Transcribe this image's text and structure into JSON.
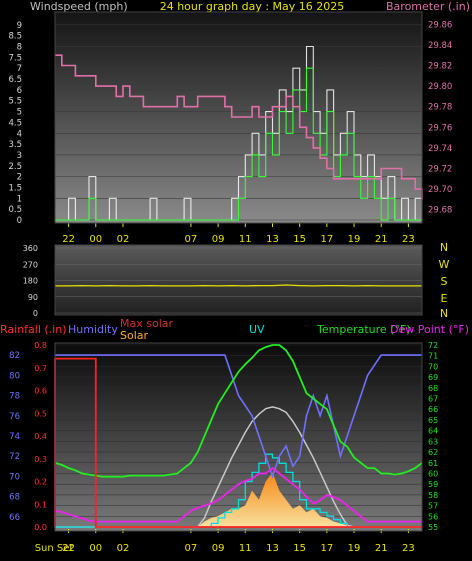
{
  "header": {
    "left_title": "Windspeed (mph)",
    "center_title": "24 hour graph day : May 16 2025",
    "right_title": "Barometer (.in)"
  },
  "time_axis_labels": [
    "22",
    "00",
    "02",
    "07",
    "09",
    "11",
    "13",
    "15",
    "17",
    "19",
    "21",
    "23"
  ],
  "bottom_time_axis_labels": [
    "Sun Set",
    "22",
    "00",
    "02",
    "07",
    "09",
    "11",
    "13",
    "15",
    "17",
    "19",
    "21",
    "23"
  ],
  "colors": {
    "wind_gust": "#ffffff",
    "wind_avg": "#33ff33",
    "barometer": "#e070a8",
    "direction": "#e8e000",
    "rainfall": "#ff2020",
    "humidity": "#7070ff",
    "max_solar": "#c8c8c8",
    "solar": "#ffb040",
    "uv": "#00e0e0",
    "temperature": "#22ee22",
    "dewpoint": "#ee22ee",
    "label_green": "#22dd22",
    "label_red": "#ff3030"
  },
  "direction_panel": {
    "tick_labels": [
      "360",
      "270",
      "180",
      "90",
      "0"
    ],
    "compass_labels": [
      "N",
      "W",
      "S",
      "E",
      "N"
    ]
  },
  "legend": {
    "rainfall": "Rainfall (.in)",
    "humidity": "Humidity",
    "max_solar": "Max solar",
    "solar": "Solar",
    "uv": "UV",
    "temperature": "Temperature (°F)",
    "dewpoint": "Dew Point (°F)"
  },
  "chart_data": [
    {
      "type": "line",
      "x": [
        21,
        21.5,
        22,
        22.5,
        23,
        23.5,
        0,
        0.5,
        1,
        1.5,
        2,
        2.5,
        3,
        3.5,
        4,
        4.5,
        5,
        5.5,
        6,
        6.5,
        7,
        7.5,
        8,
        8.5,
        9,
        9.5,
        10,
        10.5,
        11,
        11.5,
        12,
        12.5,
        13,
        13.5,
        14,
        14.5,
        15,
        15.5,
        16,
        16.5,
        17,
        17.5,
        18,
        18.5,
        19,
        19.5,
        20,
        20.5,
        21,
        21.5,
        22,
        22.5,
        23,
        23.5,
        24
      ],
      "series": [
        {
          "name": "Windspeed",
          "axis": "left",
          "values": [
            0,
            0,
            1,
            0,
            0,
            2,
            0,
            0,
            1,
            0,
            0,
            0,
            0,
            0,
            1,
            0,
            0,
            0,
            0,
            1,
            0,
            0,
            0,
            0,
            0,
            0,
            1,
            2,
            3,
            4,
            3,
            5,
            4,
            6,
            5,
            7,
            6,
            8,
            5,
            4,
            6,
            3,
            4,
            5,
            3,
            2,
            3,
            2,
            1,
            2,
            0,
            1,
            0,
            1,
            0
          ]
        },
        {
          "name": "Barometer",
          "axis": "right",
          "values": [
            29.83,
            29.82,
            29.82,
            29.81,
            29.81,
            29.81,
            29.8,
            29.8,
            29.8,
            29.79,
            29.8,
            29.79,
            29.79,
            29.78,
            29.78,
            29.78,
            29.78,
            29.78,
            29.79,
            29.78,
            29.78,
            29.79,
            29.79,
            29.79,
            29.79,
            29.78,
            29.77,
            29.77,
            29.77,
            29.78,
            29.77,
            29.77,
            29.78,
            29.78,
            29.79,
            29.78,
            29.76,
            29.75,
            29.74,
            29.73,
            29.72,
            29.71,
            29.71,
            29.71,
            29.71,
            29.71,
            29.71,
            29.71,
            29.72,
            29.72,
            29.72,
            29.71,
            29.71,
            29.7,
            29.69
          ]
        }
      ],
      "title": "24 hour graph day : May 16 2025",
      "ylabel_left": "Windspeed (mph)",
      "ylabel_right": "Barometer (.in)",
      "xticks": [
        "22",
        "00",
        "02",
        "07",
        "09",
        "11",
        "13",
        "15",
        "17",
        "19",
        "21",
        "23"
      ],
      "yticks_left": [
        0,
        0.5,
        1,
        1.5,
        2,
        2.5,
        3,
        3.5,
        4,
        4.5,
        5,
        5.5,
        6,
        6.5,
        7,
        7.5,
        8,
        8.5,
        9
      ],
      "yticks_right": [
        29.68,
        29.7,
        29.72,
        29.74,
        29.76,
        29.78,
        29.8,
        29.82,
        29.84,
        29.86
      ],
      "ylim_left": [
        0,
        9.5
      ],
      "ylim_right": [
        29.67,
        29.87
      ]
    },
    {
      "type": "line",
      "x": [
        21,
        22,
        23,
        0,
        1,
        2,
        3,
        4,
        5,
        6,
        7,
        8,
        9,
        10,
        11,
        12,
        13,
        14,
        15,
        16,
        17,
        18,
        19,
        20,
        21,
        22,
        23,
        24
      ],
      "series": [
        {
          "name": "Wind direction",
          "values": [
            150,
            150,
            152,
            150,
            152,
            150,
            150,
            152,
            150,
            150,
            150,
            152,
            150,
            152,
            150,
            152,
            152,
            155,
            152,
            150,
            152,
            152,
            150,
            152,
            150,
            150,
            150,
            150
          ]
        }
      ],
      "yticks": [
        360,
        270,
        180,
        90,
        0
      ],
      "ylim": [
        0,
        360
      ]
    },
    {
      "type": "line",
      "x": [
        21,
        21.5,
        22,
        22.5,
        23,
        23.5,
        0,
        0.5,
        1,
        1.5,
        2,
        2.5,
        3,
        3.5,
        4,
        4.5,
        5,
        5.5,
        6,
        6.5,
        7,
        7.5,
        8,
        8.5,
        9,
        9.5,
        10,
        10.5,
        11,
        11.5,
        12,
        12.5,
        13,
        13.5,
        14,
        14.5,
        15,
        15.5,
        16,
        16.5,
        17,
        17.5,
        18,
        18.5,
        19,
        19.5,
        20,
        20.5,
        21,
        21.5,
        22,
        22.5,
        23,
        23.5,
        24
      ],
      "series": [
        {
          "name": "Rainfall",
          "axis": "rain",
          "values": [
            0.74,
            0.74,
            0.74,
            0.74,
            0.74,
            0.74,
            0.74,
            0.74,
            0.74,
            0.74,
            0.74,
            0.74,
            0.74,
            0.74,
            0.74,
            0.74,
            0.74,
            0.74,
            0.74,
            0.74,
            0.74,
            0.74,
            0.74,
            0.74,
            0.74,
            0.74,
            0.74,
            0.74,
            0.74,
            0.74,
            0.74,
            0.74,
            0.74,
            0.74,
            0.74,
            0.74,
            0.74,
            0.74,
            0.74,
            0.74,
            0.74,
            0.74,
            0.74,
            0.74,
            0.74,
            0.74,
            0.74,
            0.74,
            0.74,
            0.74,
            0.74,
            0.74,
            0.74,
            0.74,
            0.74
          ]
        },
        {
          "name": "Humidity",
          "axis": "humidity",
          "values": [
            82,
            82,
            82,
            82,
            82,
            82,
            82,
            82,
            82,
            82,
            82,
            82,
            82,
            82,
            82,
            82,
            82,
            82,
            82,
            82,
            82,
            82,
            82,
            82,
            82,
            82,
            80,
            78,
            77,
            76,
            74,
            72,
            70,
            72,
            73,
            71,
            72,
            76,
            78,
            76,
            78,
            75,
            72,
            74,
            76,
            78,
            80,
            81,
            82,
            82,
            82,
            82,
            82,
            82,
            82
          ]
        },
        {
          "name": "Temperature",
          "axis": "temperature",
          "values": [
            61,
            60.8,
            60.5,
            60.3,
            60,
            59.9,
            59.8,
            59.7,
            59.7,
            59.7,
            59.7,
            59.8,
            59.8,
            59.8,
            59.8,
            59.8,
            59.8,
            59.9,
            60,
            60.5,
            61,
            62,
            63.5,
            65,
            66.5,
            67.5,
            68.5,
            69.5,
            70.2,
            70.8,
            71.5,
            71.8,
            72,
            72,
            71.5,
            70.5,
            69,
            67.5,
            67,
            66.5,
            66,
            64.5,
            63,
            62.5,
            61.5,
            61,
            60.5,
            60.5,
            60,
            60,
            59.9,
            60,
            60.2,
            60.5,
            61
          ]
        },
        {
          "name": "Dew Point",
          "axis": "temperature",
          "values": [
            56.5,
            56.4,
            56.2,
            56,
            55.8,
            55.6,
            55.5,
            55.5,
            55.5,
            55.5,
            55.5,
            55.5,
            55.5,
            55.5,
            55.5,
            55.5,
            55.5,
            55.5,
            55.5,
            56,
            56.5,
            56.8,
            57,
            57.2,
            57.5,
            58,
            58.5,
            59,
            59.3,
            59.5,
            60,
            60,
            60.5,
            60,
            59.5,
            59,
            58.5,
            57.8,
            57.2,
            57.5,
            58,
            57.8,
            57.5,
            57,
            56.5,
            56,
            55.5,
            55.5,
            55.5,
            55.5,
            55.5,
            55.5,
            55.5,
            55.5,
            55.5
          ]
        },
        {
          "name": "Max solar",
          "axis": "solar_uv",
          "values": [
            0,
            0,
            0,
            0,
            0,
            0,
            0,
            0,
            0,
            0,
            0,
            0,
            0,
            0,
            0,
            0,
            0,
            0,
            0,
            0,
            0,
            0,
            0.05,
            0.14,
            0.22,
            0.3,
            0.38,
            0.45,
            0.52,
            0.58,
            0.62,
            0.65,
            0.66,
            0.65,
            0.63,
            0.58,
            0.52,
            0.45,
            0.38,
            0.3,
            0.22,
            0.14,
            0.07,
            0.01,
            0,
            0,
            0,
            0,
            0,
            0,
            0,
            0,
            0,
            0,
            0
          ]
        },
        {
          "name": "Solar",
          "axis": "solar_uv",
          "values": [
            0,
            0,
            0,
            0,
            0,
            0,
            0,
            0,
            0,
            0,
            0,
            0,
            0,
            0,
            0,
            0,
            0,
            0,
            0,
            0,
            0,
            0,
            0.03,
            0.05,
            0.06,
            0.08,
            0.1,
            0.1,
            0.12,
            0.2,
            0.15,
            0.25,
            0.3,
            0.2,
            0.15,
            0.1,
            0.12,
            0.08,
            0.1,
            0.06,
            0.05,
            0.03,
            0.02,
            0.01,
            0,
            0,
            0,
            0,
            0,
            0,
            0,
            0,
            0,
            0,
            0
          ]
        },
        {
          "name": "UV",
          "axis": "solar_uv",
          "values": [
            0,
            0,
            0,
            0,
            0,
            0,
            0,
            0,
            0,
            0,
            0,
            0,
            0,
            0,
            0,
            0,
            0,
            0,
            0,
            0,
            0,
            0,
            0,
            0.02,
            0.05,
            0.08,
            0.1,
            0.15,
            0.25,
            0.3,
            0.35,
            0.4,
            0.38,
            0.35,
            0.3,
            0.25,
            0.15,
            0.1,
            0.1,
            0.08,
            0.06,
            0.04,
            0.02,
            0,
            0,
            0,
            0,
            0,
            0,
            0,
            0,
            0,
            0,
            0,
            0
          ]
        }
      ],
      "xticks": [
        "Sun Set",
        "22",
        "00",
        "02",
        "07",
        "09",
        "11",
        "13",
        "15",
        "17",
        "19",
        "21",
        "23"
      ],
      "yticks_rain": [
        0,
        0.1,
        0.2,
        0.3,
        0.4,
        0.5,
        0.6,
        0.7,
        0.8
      ],
      "yticks_humidity": [
        66,
        68,
        70,
        72,
        74,
        76,
        78,
        80,
        82
      ],
      "yticks_temperature": [
        55,
        56,
        57,
        58,
        59,
        60,
        61,
        62,
        63,
        64,
        65,
        66,
        67,
        68,
        69,
        70,
        71,
        72
      ],
      "ylim_rain": [
        0,
        0.8
      ],
      "ylim_humidity": [
        65,
        83
      ],
      "ylim_temperature": [
        55,
        72
      ],
      "ylim_solar_uv": [
        0,
        1
      ]
    }
  ]
}
